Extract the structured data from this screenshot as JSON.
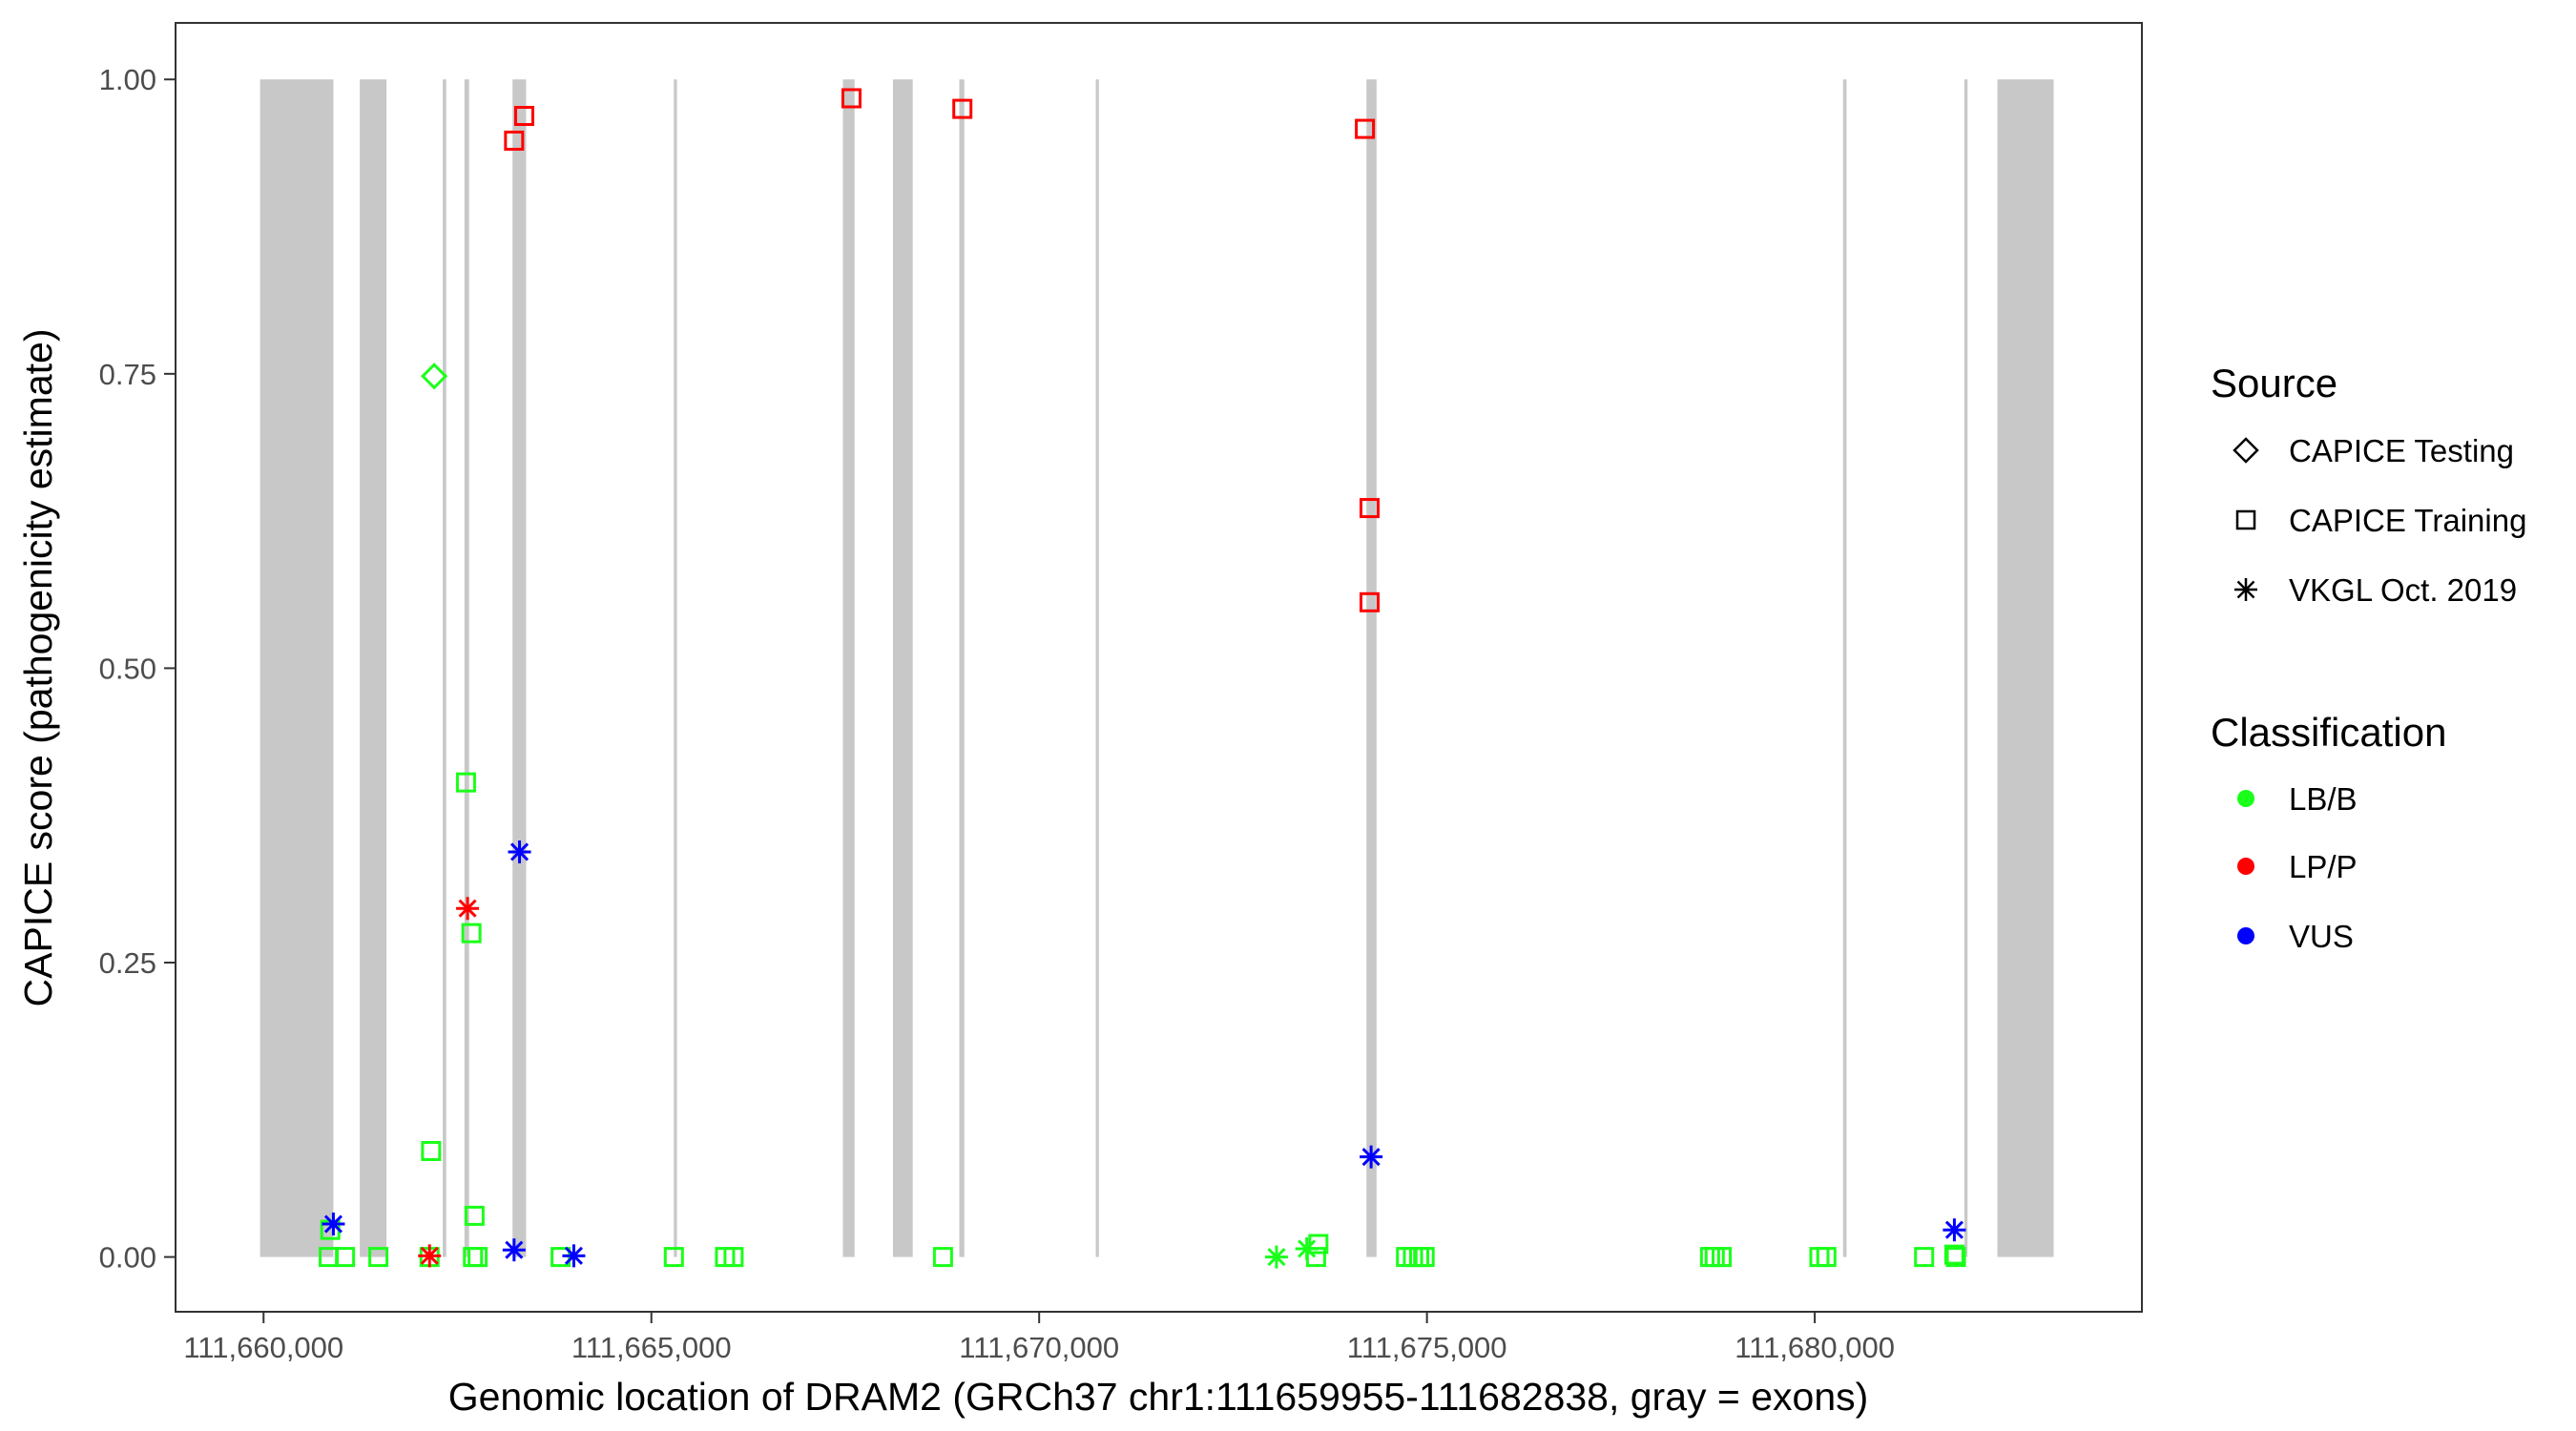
{
  "chart_data": {
    "type": "scatter",
    "title": "",
    "xlabel": "Genomic location of DRAM2 (GRCh37 chr1:111659955-111682838, gray = exons)",
    "ylabel": "CAPICE score (pathogenicity estimate)",
    "xlim": [
      111658865,
      111684218
    ],
    "ylim": [
      -0.0465,
      1.048
    ],
    "x_ticks": [
      111660000,
      111665000,
      111670000,
      111675000,
      111680000
    ],
    "x_tick_labels": [
      "111,660,000",
      "111,665,000",
      "111,670,000",
      "111,675,000",
      "111,680,000"
    ],
    "y_ticks": [
      0,
      0.25,
      0.5,
      0.75,
      1
    ],
    "y_tick_labels": [
      "0.00",
      "0.25",
      "0.50",
      "0.75",
      "1.00"
    ],
    "grid": false,
    "exon_color": "#c8c8c8",
    "exons": [
      [
        111659955,
        111660900
      ],
      [
        111661240,
        111661585
      ],
      [
        111662310,
        111662355
      ],
      [
        111662590,
        111662650
      ],
      [
        111663210,
        111663385
      ],
      [
        111665290,
        111665330
      ],
      [
        111667470,
        111667620
      ],
      [
        111668115,
        111668370
      ],
      [
        111668970,
        111669035
      ],
      [
        111670730,
        111670770
      ],
      [
        111674220,
        111674350
      ],
      [
        111680365,
        111680410
      ],
      [
        111681930,
        111681970
      ],
      [
        111682355,
        111683080
      ]
    ],
    "legend": {
      "placement": "right",
      "source": {
        "title": "Source",
        "items": [
          {
            "label": "CAPICE Testing",
            "shape": "diamond"
          },
          {
            "label": "CAPICE Training",
            "shape": "square"
          },
          {
            "label": "VKGL Oct. 2019",
            "shape": "asterisk"
          }
        ]
      },
      "classification": {
        "title": "Classification",
        "items": [
          {
            "label": "LB/B",
            "color": "#1aff1a"
          },
          {
            "label": "LP/P",
            "color": "#ff0000"
          },
          {
            "label": "VUS",
            "color": "#0000ff"
          }
        ]
      }
    },
    "points": [
      {
        "x": 111663230,
        "y": 0.948,
        "source": "CAPICE Training",
        "class": "LP/P"
      },
      {
        "x": 111663360,
        "y": 0.969,
        "source": "CAPICE Training",
        "class": "LP/P"
      },
      {
        "x": 111667580,
        "y": 0.984,
        "source": "CAPICE Training",
        "class": "LP/P"
      },
      {
        "x": 111669010,
        "y": 0.975,
        "source": "CAPICE Training",
        "class": "LP/P"
      },
      {
        "x": 111674200,
        "y": 0.958,
        "source": "CAPICE Training",
        "class": "LP/P"
      },
      {
        "x": 111674260,
        "y": 0.636,
        "source": "CAPICE Training",
        "class": "LP/P"
      },
      {
        "x": 111674260,
        "y": 0.556,
        "source": "CAPICE Training",
        "class": "LP/P"
      },
      {
        "x": 111662200,
        "y": 0.748,
        "source": "CAPICE Testing",
        "class": "LB/B"
      },
      {
        "x": 111662610,
        "y": 0.403,
        "source": "CAPICE Training",
        "class": "LB/B"
      },
      {
        "x": 111662680,
        "y": 0.275,
        "source": "CAPICE Training",
        "class": "LB/B"
      },
      {
        "x": 111662160,
        "y": 0.09,
        "source": "CAPICE Training",
        "class": "LB/B"
      },
      {
        "x": 111662720,
        "y": 0.035,
        "source": "CAPICE Training",
        "class": "LB/B"
      },
      {
        "x": 111660860,
        "y": 0.023,
        "source": "CAPICE Training",
        "class": "LB/B"
      },
      {
        "x": 111660840,
        "y": 0.0,
        "source": "CAPICE Training",
        "class": "LB/B"
      },
      {
        "x": 111661050,
        "y": 0.0,
        "source": "CAPICE Training",
        "class": "LB/B"
      },
      {
        "x": 111661480,
        "y": 0.0,
        "source": "CAPICE Training",
        "class": "LB/B"
      },
      {
        "x": 111662140,
        "y": 0.0,
        "source": "CAPICE Training",
        "class": "LB/B"
      },
      {
        "x": 111662700,
        "y": 0.0,
        "source": "CAPICE Training",
        "class": "LB/B"
      },
      {
        "x": 111662760,
        "y": 0.0,
        "source": "CAPICE Training",
        "class": "LB/B"
      },
      {
        "x": 111663830,
        "y": 0.0,
        "source": "CAPICE Training",
        "class": "LB/B"
      },
      {
        "x": 111665290,
        "y": 0.0,
        "source": "CAPICE Training",
        "class": "LB/B"
      },
      {
        "x": 111665950,
        "y": 0.0,
        "source": "CAPICE Training",
        "class": "LB/B"
      },
      {
        "x": 111666060,
        "y": 0.0,
        "source": "CAPICE Training",
        "class": "LB/B"
      },
      {
        "x": 111668760,
        "y": 0.0,
        "source": "CAPICE Training",
        "class": "LB/B"
      },
      {
        "x": 111673570,
        "y": 0.0,
        "source": "CAPICE Training",
        "class": "LB/B"
      },
      {
        "x": 111673600,
        "y": 0.011,
        "source": "CAPICE Training",
        "class": "LB/B"
      },
      {
        "x": 111674730,
        "y": 0.0,
        "source": "CAPICE Training",
        "class": "LB/B"
      },
      {
        "x": 111674820,
        "y": 0.0,
        "source": "CAPICE Training",
        "class": "LB/B"
      },
      {
        "x": 111674900,
        "y": 0.0,
        "source": "CAPICE Training",
        "class": "LB/B"
      },
      {
        "x": 111674970,
        "y": 0.0,
        "source": "CAPICE Training",
        "class": "LB/B"
      },
      {
        "x": 111678650,
        "y": 0.0,
        "source": "CAPICE Training",
        "class": "LB/B"
      },
      {
        "x": 111678710,
        "y": 0.0,
        "source": "CAPICE Training",
        "class": "LB/B"
      },
      {
        "x": 111678800,
        "y": 0.0,
        "source": "CAPICE Training",
        "class": "LB/B"
      },
      {
        "x": 111680060,
        "y": 0.0,
        "source": "CAPICE Training",
        "class": "LB/B"
      },
      {
        "x": 111680150,
        "y": 0.0,
        "source": "CAPICE Training",
        "class": "LB/B"
      },
      {
        "x": 111681410,
        "y": 0.0,
        "source": "CAPICE Training",
        "class": "LB/B"
      },
      {
        "x": 111681800,
        "y": 0.002,
        "source": "CAPICE Training",
        "class": "LB/B"
      },
      {
        "x": 111681820,
        "y": 0.0,
        "source": "CAPICE Training",
        "class": "LB/B"
      },
      {
        "x": 111660900,
        "y": 0.028,
        "source": "VKGL Oct. 2019",
        "class": "VUS"
      },
      {
        "x": 111663300,
        "y": 0.344,
        "source": "VKGL Oct. 2019",
        "class": "VUS"
      },
      {
        "x": 111663230,
        "y": 0.006,
        "source": "VKGL Oct. 2019",
        "class": "VUS"
      },
      {
        "x": 111664000,
        "y": 0.001,
        "source": "VKGL Oct. 2019",
        "class": "VUS"
      },
      {
        "x": 111674280,
        "y": 0.085,
        "source": "VKGL Oct. 2019",
        "class": "VUS"
      },
      {
        "x": 111681800,
        "y": 0.023,
        "source": "VKGL Oct. 2019",
        "class": "VUS"
      },
      {
        "x": 111662630,
        "y": 0.296,
        "source": "VKGL Oct. 2019",
        "class": "LP/P"
      },
      {
        "x": 111662140,
        "y": 0.001,
        "source": "VKGL Oct. 2019",
        "class": "LP/P"
      },
      {
        "x": 111673060,
        "y": 0.0,
        "source": "VKGL Oct. 2019",
        "class": "LB/B"
      },
      {
        "x": 111673450,
        "y": 0.007,
        "source": "VKGL Oct. 2019",
        "class": "LB/B"
      }
    ]
  }
}
